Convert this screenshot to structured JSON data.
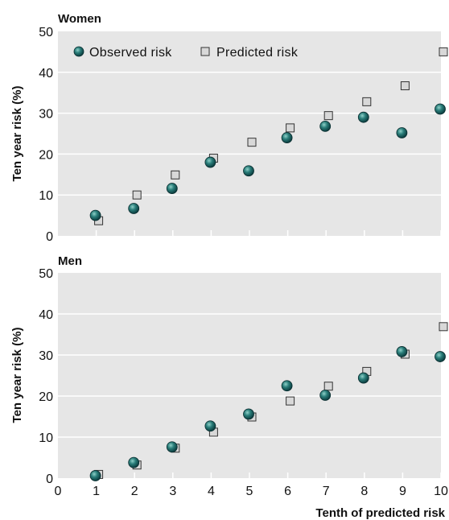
{
  "chart_data": [
    {
      "type": "scatter",
      "title": "Women",
      "ylabel": "Ten year risk (%)",
      "xlabel": "",
      "xlim": [
        0,
        10
      ],
      "ylim": [
        0,
        50
      ],
      "yticks": [
        0,
        10,
        20,
        30,
        40,
        50
      ],
      "grid": true,
      "legend_position": "top-left",
      "x": [
        1,
        2,
        3,
        4,
        5,
        6,
        7,
        8,
        9,
        10
      ],
      "series": [
        {
          "name": "Observed risk",
          "marker": "circle",
          "color": "#1d6b6b",
          "values": [
            5.0,
            6.7,
            11.6,
            18.0,
            15.9,
            24.0,
            26.8,
            29.0,
            25.2,
            31.0
          ]
        },
        {
          "name": "Predicted risk",
          "marker": "square",
          "color": "#d8d8d8",
          "values": [
            3.7,
            10.0,
            14.9,
            19.0,
            22.9,
            26.4,
            29.4,
            32.8,
            36.7,
            45.0
          ]
        }
      ]
    },
    {
      "type": "scatter",
      "title": "Men",
      "ylabel": "Ten year risk (%)",
      "xlabel": "Tenth of predicted risk",
      "xlim": [
        0,
        10
      ],
      "ylim": [
        0,
        50
      ],
      "yticks": [
        0,
        10,
        20,
        30,
        40,
        50
      ],
      "xticks": [
        0,
        1,
        2,
        3,
        4,
        5,
        6,
        7,
        8,
        9,
        10
      ],
      "grid": true,
      "x": [
        1,
        2,
        3,
        4,
        5,
        6,
        7,
        8,
        9,
        10
      ],
      "series": [
        {
          "name": "Observed risk",
          "marker": "circle",
          "color": "#1d6b6b",
          "values": [
            0.6,
            3.8,
            7.6,
            12.7,
            15.6,
            22.5,
            20.2,
            24.4,
            30.8,
            29.6
          ]
        },
        {
          "name": "Predicted risk",
          "marker": "square",
          "color": "#d8d8d8",
          "values": [
            0.9,
            3.2,
            7.3,
            11.2,
            14.9,
            18.8,
            22.4,
            26.0,
            30.2,
            36.9
          ]
        }
      ]
    }
  ],
  "colors": {
    "panel_background": "#e6e6e6",
    "gridline": "#ffffff",
    "observed_fill": "#1d6b6b",
    "predicted_fill": "#d8d8d8"
  }
}
